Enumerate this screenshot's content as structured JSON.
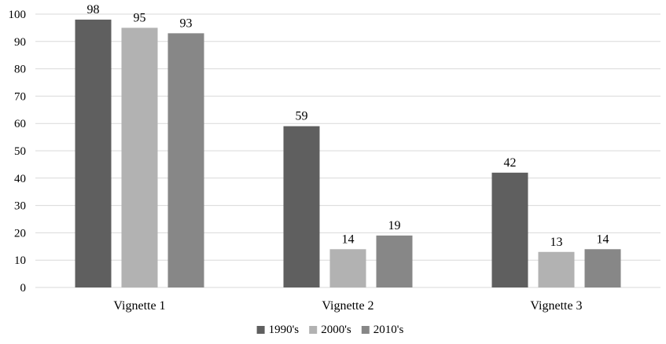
{
  "chart_data": {
    "type": "bar",
    "categories": [
      "Vignette 1",
      "Vignette 2",
      "Vignette 3"
    ],
    "series": [
      {
        "name": "1990's",
        "values": [
          98,
          59,
          42
        ],
        "color": "#5f5f5f"
      },
      {
        "name": "2000's",
        "values": [
          95,
          14,
          13
        ],
        "color": "#b2b2b2"
      },
      {
        "name": "2010's",
        "values": [
          93,
          19,
          14
        ],
        "color": "#878787"
      }
    ],
    "ylim": [
      0,
      100
    ],
    "yticks": [
      "0",
      "10",
      "20",
      "30",
      "40",
      "50",
      "60",
      "70",
      "80",
      "90",
      "100"
    ],
    "grid": true,
    "legend_position": "bottom",
    "data_labels": true
  }
}
